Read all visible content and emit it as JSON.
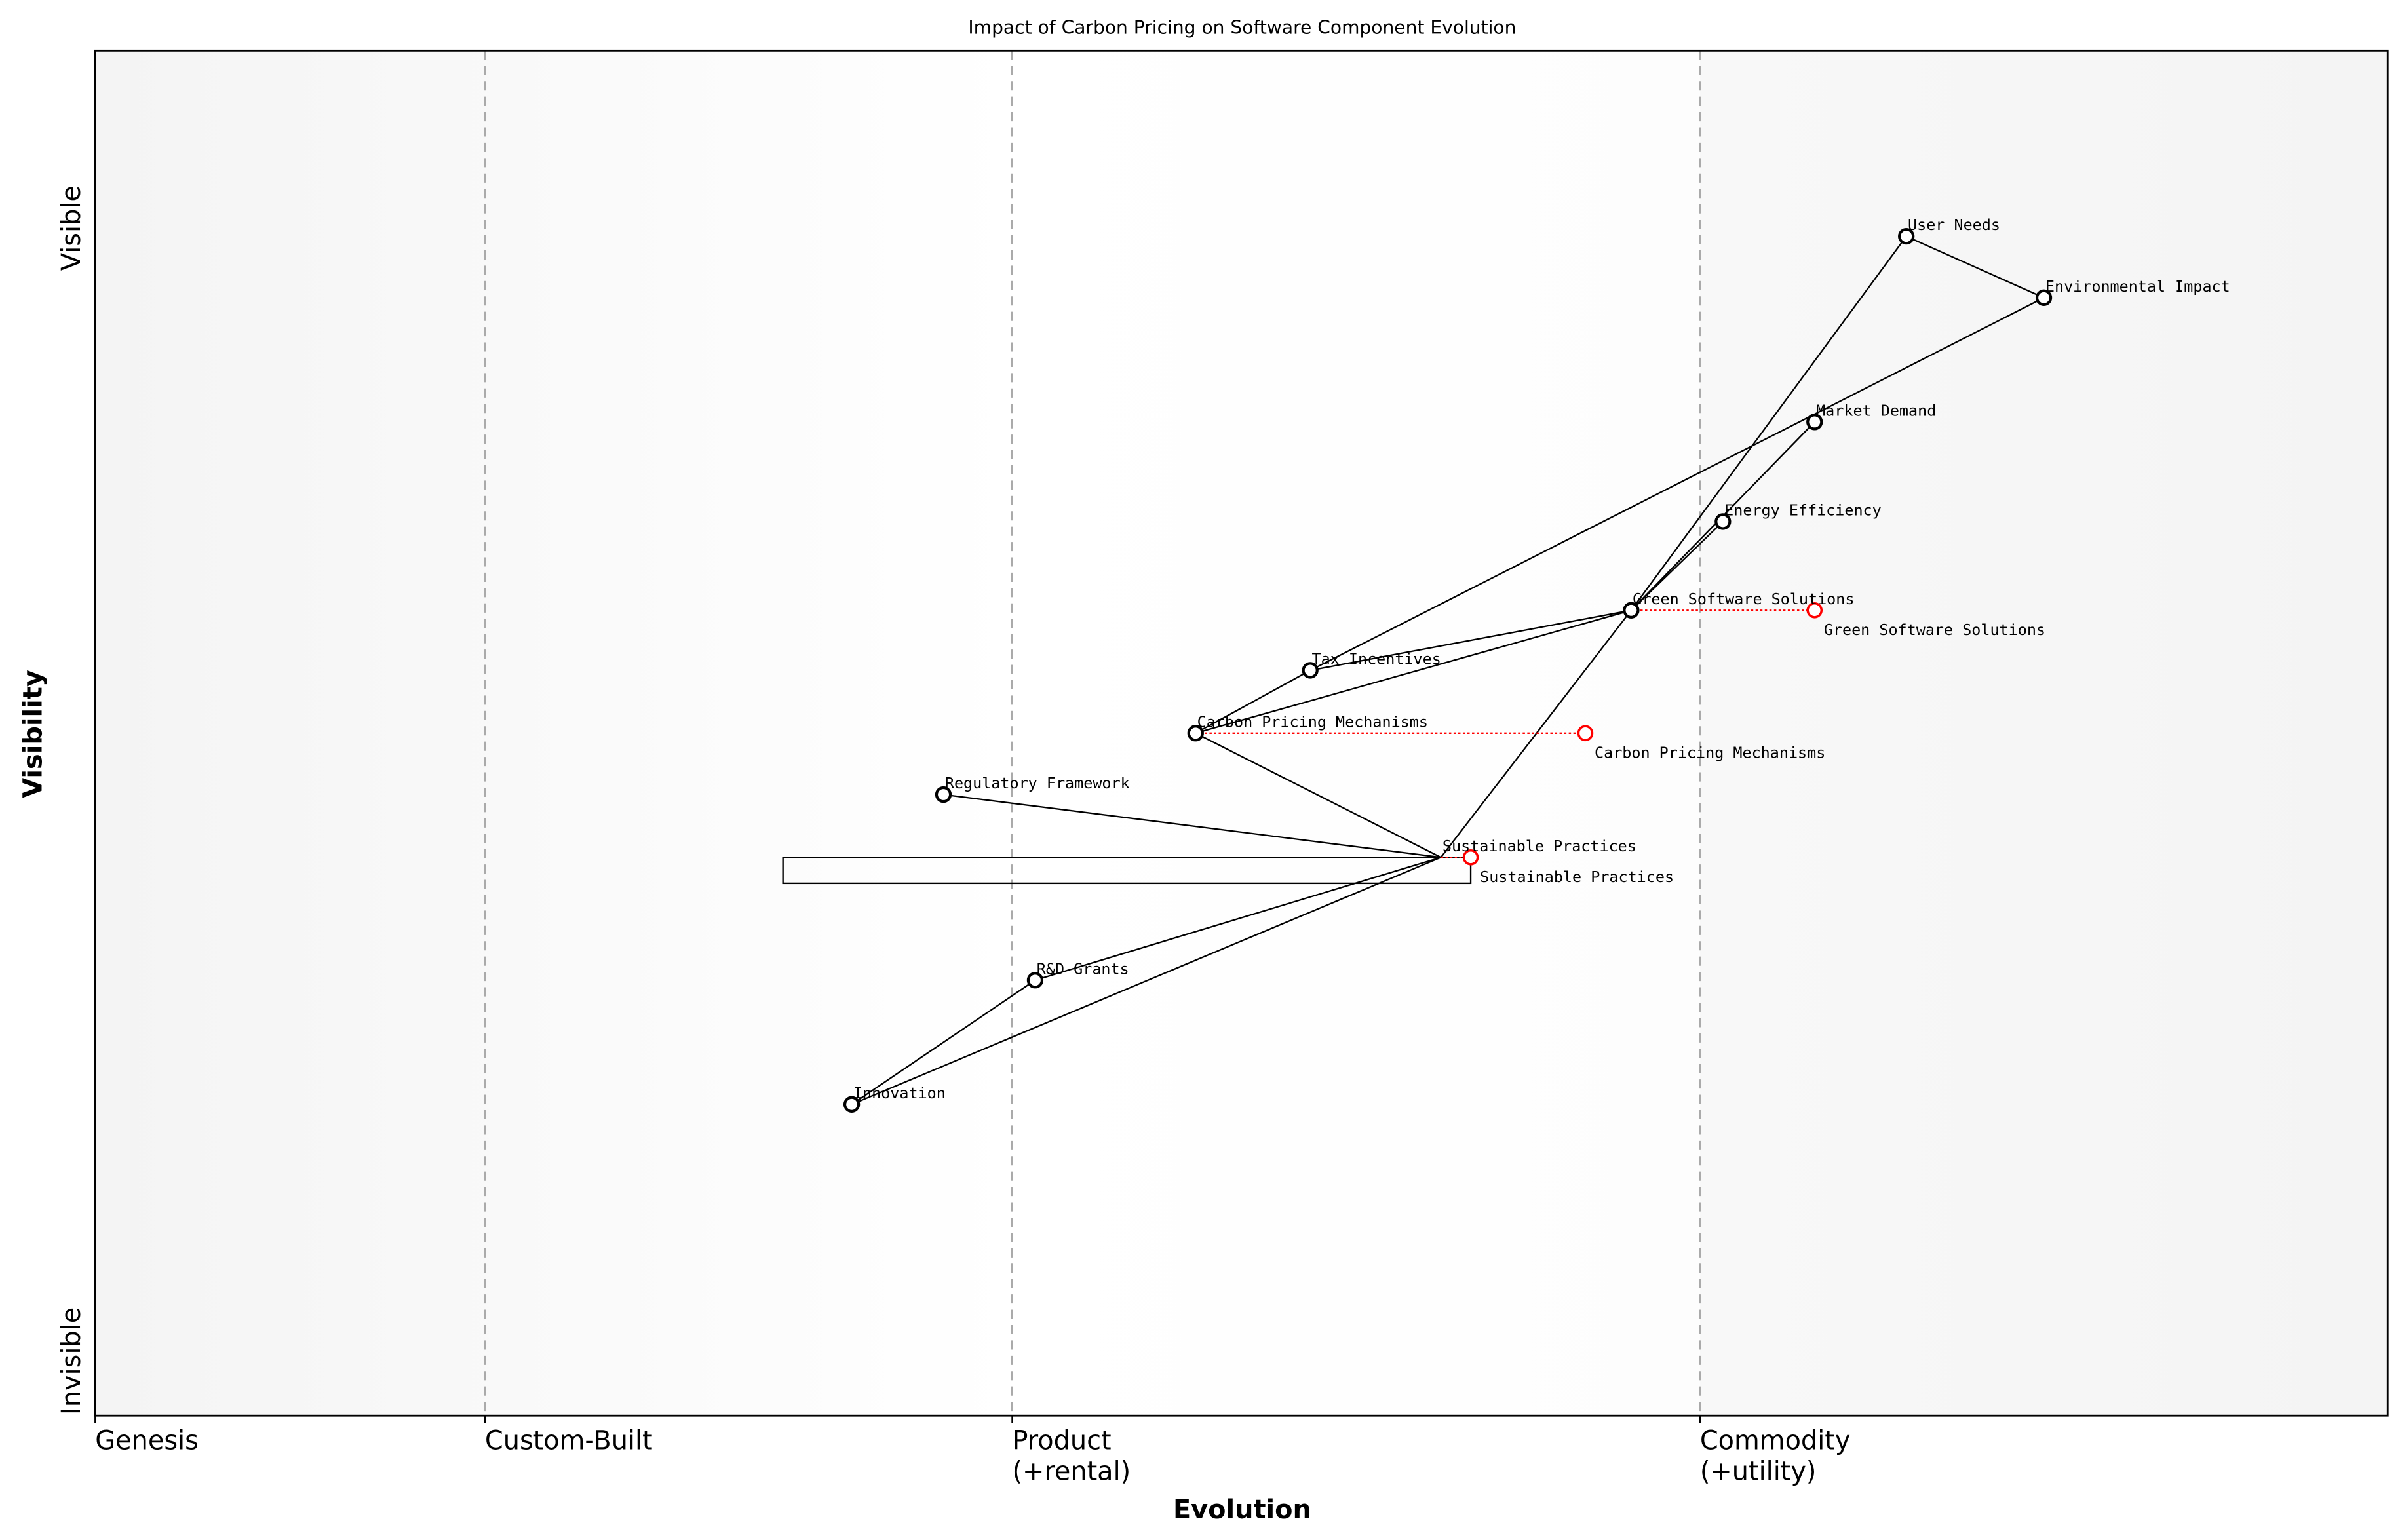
{
  "chart_data": {
    "type": "scatter",
    "subtype": "wardley-map",
    "title": "Impact of Carbon Pricing on Software Component Evolution",
    "xlabel": "Evolution",
    "ylabel": "Visibility",
    "xlim": [
      0,
      1
    ],
    "ylim": [
      0,
      1
    ],
    "grid": false,
    "x_stages": [
      {
        "label": "Genesis",
        "x": 0.0
      },
      {
        "label": "Custom-Built",
        "x": 0.17
      },
      {
        "label": "Product\n(+rental)",
        "label_lines": [
          "Product",
          "(+rental)"
        ],
        "x": 0.4
      },
      {
        "label": "Commodity\n(+utility)",
        "label_lines": [
          "Commodity",
          "(+utility)"
        ],
        "x": 0.7
      }
    ],
    "y_ticks": [
      {
        "label": "Visible",
        "y": 0.87
      },
      {
        "label": "Invisible",
        "y": 0.04
      }
    ],
    "components": [
      {
        "name": "User Needs",
        "evolution": 0.79,
        "visibility": 0.864
      },
      {
        "name": "Environmental Impact",
        "evolution": 0.85,
        "visibility": 0.819
      },
      {
        "name": "Market Demand",
        "evolution": 0.75,
        "visibility": 0.728
      },
      {
        "name": "Energy Efficiency",
        "evolution": 0.71,
        "visibility": 0.655
      },
      {
        "name": "Green Software Solutions",
        "evolution": 0.67,
        "visibility": 0.59
      },
      {
        "name": "Tax Incentives",
        "evolution": 0.53,
        "visibility": 0.546
      },
      {
        "name": "Carbon Pricing Mechanisms",
        "evolution": 0.48,
        "visibility": 0.5
      },
      {
        "name": "Regulatory Framework",
        "evolution": 0.37,
        "visibility": 0.455
      },
      {
        "name": "Sustainable Practices",
        "evolution": 0.587,
        "visibility": 0.409,
        "marker_hidden": true
      },
      {
        "name": "R&D Grants",
        "evolution": 0.41,
        "visibility": 0.319
      },
      {
        "name": "Innovation",
        "evolution": 0.33,
        "visibility": 0.228
      }
    ],
    "evolved": [
      {
        "name": "Green Software Solutions",
        "from": 0.67,
        "to": 0.75,
        "visibility": 0.59
      },
      {
        "name": "Carbon Pricing Mechanisms",
        "from": 0.48,
        "to": 0.65,
        "visibility": 0.5
      },
      {
        "name": "Sustainable Practices",
        "from": 0.587,
        "to": 0.6,
        "visibility": 0.409
      }
    ],
    "links": [
      [
        "User Needs",
        "Environmental Impact"
      ],
      [
        "User Needs",
        "Green Software Solutions"
      ],
      [
        "Green Software Solutions",
        "Sustainable Practices"
      ],
      [
        "Environmental Impact",
        "Tax Incentives"
      ],
      [
        "Market Demand",
        "Green Software Solutions"
      ],
      [
        "Energy Efficiency",
        "Green Software Solutions"
      ],
      [
        "Green Software Solutions",
        "Tax Incentives"
      ],
      [
        "Green Software Solutions",
        "Carbon Pricing Mechanisms"
      ],
      [
        "Tax Incentives",
        "Carbon Pricing Mechanisms"
      ],
      [
        "Carbon Pricing Mechanisms",
        "Sustainable Practices"
      ],
      [
        "Regulatory Framework",
        "Sustainable Practices"
      ],
      [
        "Sustainable Practices",
        "R&D Grants"
      ],
      [
        "Sustainable Practices",
        "Innovation"
      ],
      [
        "R&D Grants",
        "Innovation"
      ]
    ],
    "box": {
      "x0": 0.3,
      "x1": 0.6,
      "y0": 0.39,
      "y1": 0.409
    },
    "colors": {
      "node": "#000000",
      "evolved": "#ff0000",
      "stage_line": "#aaaaaa",
      "band_edge": "#f2f2f2",
      "band_mid": "#ffffff"
    }
  }
}
